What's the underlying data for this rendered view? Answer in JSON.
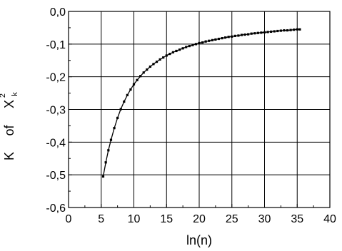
{
  "chart_data": {
    "type": "line",
    "title": "",
    "xlabel": "ln(n)",
    "ylabel_parts": [
      "K",
      "of",
      "X",
      "2",
      "k"
    ],
    "xlim": [
      0,
      40
    ],
    "ylim": [
      -0.6,
      0.0
    ],
    "x_ticks": [
      0,
      5,
      10,
      15,
      20,
      25,
      30,
      35,
      40
    ],
    "x_tick_labels": [
      "0",
      "5",
      "10",
      "15",
      "20",
      "25",
      "30",
      "35",
      "40"
    ],
    "y_ticks": [
      0.0,
      -0.1,
      -0.2,
      -0.3,
      -0.4,
      -0.5,
      -0.6
    ],
    "y_tick_labels": [
      "0,0",
      "-0,1",
      "-0,2",
      "-0,3",
      "-0,4",
      "-0,5",
      "-0,6"
    ],
    "grid": true,
    "series": [
      {
        "marker": "square",
        "x": [
          5.3,
          5.7,
          6.1,
          6.5,
          7.0,
          7.5,
          8.0,
          8.5,
          9.0,
          9.5,
          10.0,
          10.5,
          11.0,
          11.5,
          12.0,
          12.5,
          13.0,
          13.5,
          14.0,
          14.5,
          15.0,
          15.5,
          16.0,
          16.5,
          17.0,
          17.5,
          18.0,
          18.5,
          19.0,
          19.5,
          20.0,
          20.5,
          21.0,
          21.5,
          22.0,
          22.5,
          23.0,
          23.5,
          24.0,
          24.5,
          25.0,
          25.5,
          26.0,
          26.5,
          27.0,
          27.5,
          28.0,
          28.5,
          29.0,
          29.5,
          30.0,
          30.5,
          31.0,
          31.5,
          32.0,
          32.5,
          33.0,
          33.5,
          34.0,
          34.5,
          35.0,
          35.4
        ],
        "y": [
          -0.505,
          -0.462,
          -0.425,
          -0.393,
          -0.357,
          -0.326,
          -0.299,
          -0.276,
          -0.256,
          -0.239,
          -0.223,
          -0.21,
          -0.198,
          -0.187,
          -0.178,
          -0.169,
          -0.161,
          -0.154,
          -0.147,
          -0.141,
          -0.135,
          -0.13,
          -0.125,
          -0.121,
          -0.117,
          -0.113,
          -0.109,
          -0.106,
          -0.103,
          -0.1,
          -0.097,
          -0.095,
          -0.092,
          -0.09,
          -0.088,
          -0.086,
          -0.084,
          -0.082,
          -0.08,
          -0.078,
          -0.077,
          -0.075,
          -0.074,
          -0.072,
          -0.071,
          -0.07,
          -0.068,
          -0.067,
          -0.066,
          -0.065,
          -0.064,
          -0.063,
          -0.062,
          -0.061,
          -0.06,
          -0.059,
          -0.058,
          -0.058,
          -0.057,
          -0.056,
          -0.055,
          -0.055
        ]
      }
    ]
  }
}
